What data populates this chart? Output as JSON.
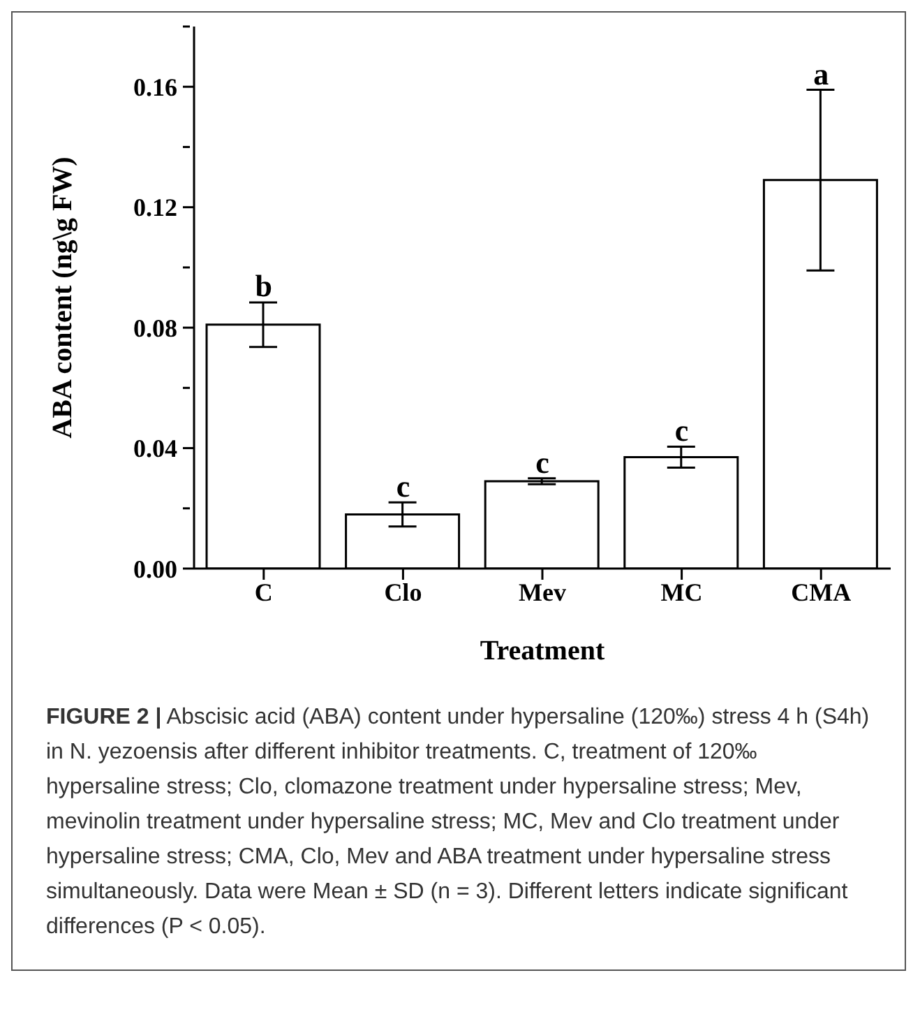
{
  "chart_data": {
    "type": "bar",
    "xlabel": "Treatment",
    "ylabel": "ABA content (ng\\g FW)",
    "categories": [
      "C",
      "Clo",
      "Mev",
      "MC",
      "CMA"
    ],
    "values": [
      0.081,
      0.018,
      0.029,
      0.037,
      0.129
    ],
    "errors": [
      0.0074,
      0.004,
      0.001,
      0.0035,
      0.03
    ],
    "color": "#ffffff",
    "ylim": [
      0,
      0.18
    ],
    "yticks": [
      {
        "value": 0,
        "label": "0.00"
      },
      {
        "value": 0.02,
        "label": null
      },
      0.04,
      {
        "value": 0.06,
        "label": null
      },
      0.08,
      {
        "value": 0.1,
        "label": null
      },
      0.12,
      {
        "value": 0.14,
        "label": null
      },
      0.16,
      {
        "value": 0.18,
        "label": null
      }
    ],
    "grid": false,
    "legend": false,
    "annotations": [
      {
        "text": "b",
        "x": "C",
        "y": 0.0885
      },
      {
        "text": "c",
        "x": "Clo",
        "y": 0.022
      },
      {
        "text": "c",
        "x": "Mev",
        "y": 0.03
      },
      {
        "text": "c",
        "x": "MC",
        "y": 0.0405
      },
      {
        "text": "a",
        "x": "CMA",
        "y": 0.159
      },
      "FIGURE 2 | Abscisic acid (ABA) content under hypersaline (120‰) stress 4 h (S4h) in N. yezoensis after different inhibitor treatments. C, treatment of 120‰ hypersaline stress; Clo, clomazone treatment under hypersaline stress; Mev, mevinolin treatment under hypersaline stress; MC, Mev and Clo treatment under hypersaline stress; CMA, Clo, Mev and ABA treatment under hypersaline stress simultaneously. Data were Mean ± SD (n = 3). Different letters indicate significant differences (P < 0.05)."
    ]
  }
}
